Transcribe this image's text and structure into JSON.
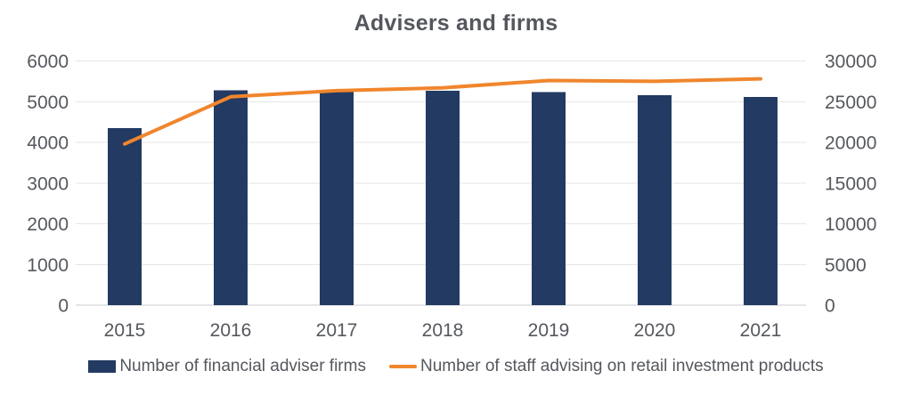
{
  "chart_data": {
    "type": "combo-bar-line",
    "title": "Advisers and firms",
    "categories": [
      "2015",
      "2016",
      "2017",
      "2018",
      "2019",
      "2020",
      "2021"
    ],
    "series": [
      {
        "name": "Number of financial adviser firms",
        "type": "bar",
        "axis": "left",
        "color": "#233a62",
        "values": [
          4350,
          5280,
          5260,
          5270,
          5240,
          5160,
          5110
        ]
      },
      {
        "name": "Number of staff advising on retail investment products",
        "type": "line",
        "axis": "right",
        "color": "#f0862d",
        "values": [
          19800,
          25600,
          26350,
          26700,
          27600,
          27500,
          27800
        ]
      }
    ],
    "left_axis": {
      "min": 0,
      "max": 6000,
      "step": 1000,
      "tick_labels": [
        "0",
        "1000",
        "2000",
        "3000",
        "4000",
        "5000",
        "6000"
      ]
    },
    "right_axis": {
      "min": 0,
      "max": 30000,
      "step": 5000,
      "tick_labels": [
        "0",
        "5000",
        "10000",
        "15000",
        "20000",
        "25000",
        "30000"
      ]
    },
    "grid": "horizontal",
    "gridline_color": "#e5e6e8",
    "axis_line_color": "#c9cccf",
    "legend_position": "bottom",
    "background_color": "#ffffff",
    "title_color": "#54575d",
    "tick_label_color": "#55585e"
  }
}
